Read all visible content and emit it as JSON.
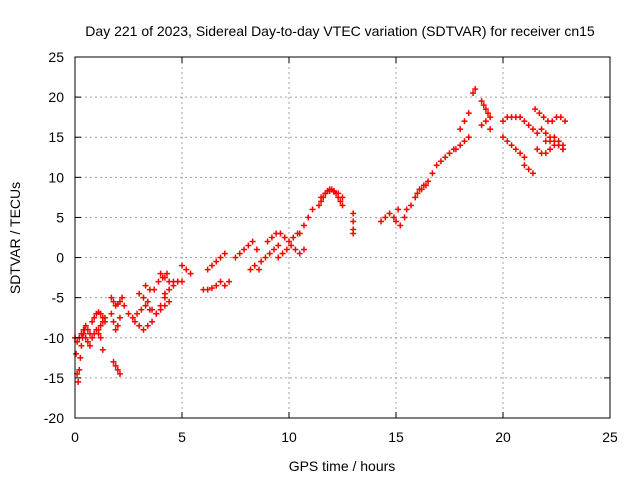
{
  "chart_data": {
    "type": "scatter",
    "title": "Day 221 of 2023, Sidereal Day-to-day VTEC variation (SDTVAR) for receiver cn15",
    "xlabel": "GPS time / hours",
    "ylabel": "SDTVAR / TECUs",
    "xlim": [
      0,
      25
    ],
    "ylim": [
      -20,
      25
    ],
    "x_ticks": [
      0,
      5,
      10,
      15,
      20,
      25
    ],
    "y_ticks": [
      -20,
      -15,
      -10,
      -5,
      0,
      5,
      10,
      15,
      20,
      25
    ],
    "grid": true,
    "marker": "+",
    "color": "#ff0000",
    "series": [
      {
        "name": "cn15",
        "x": [
          0.0,
          0.05,
          0.1,
          0.15,
          0.2,
          0.25,
          0.3,
          0.35,
          0.4,
          0.45,
          0.1,
          0.2,
          0.3,
          0.4,
          0.5,
          0.6,
          0.7,
          0.8,
          0.9,
          1.0,
          1.1,
          1.2,
          1.3,
          1.4,
          0.5,
          0.6,
          0.7,
          0.8,
          0.9,
          1.0,
          1.1,
          1.2,
          1.3,
          1.1,
          1.2,
          1.3,
          1.4,
          1.7,
          1.8,
          1.9,
          2.0,
          2.1,
          2.2,
          1.7,
          1.8,
          1.9,
          2.0,
          2.1,
          1.8,
          1.9,
          2.0,
          2.1,
          2.3,
          2.5,
          2.7,
          2.9,
          3.1,
          3.3,
          3.5,
          2.8,
          3.0,
          3.2,
          3.4,
          3.6,
          3.8,
          4.0,
          4.2,
          3.0,
          3.2,
          3.4,
          3.6,
          3.8,
          4.0,
          4.2,
          4.4,
          3.3,
          3.5,
          3.7,
          3.9,
          4.1,
          4.3,
          4.0,
          4.2,
          4.4,
          4.6,
          4.8,
          4.2,
          4.4,
          4.6,
          4.8,
          5.0,
          5.0,
          5.2,
          5.4,
          6.0,
          6.2,
          6.4,
          6.6,
          6.2,
          6.4,
          6.6,
          6.8,
          7.0,
          6.8,
          7.0,
          7.2,
          7.5,
          7.7,
          7.9,
          8.1,
          8.3,
          8.5,
          8.2,
          8.4,
          8.6,
          8.7,
          8.9,
          9.1,
          9.3,
          9.5,
          9.0,
          9.2,
          9.4,
          9.6,
          9.8,
          10.0,
          10.2,
          10.4,
          9.5,
          9.7,
          9.9,
          10.1,
          10.3,
          10.5,
          10.7,
          10.5,
          10.7,
          10.9,
          11.1,
          11.4,
          11.5,
          11.6,
          11.7,
          11.8,
          11.9,
          12.0,
          12.1,
          12.2,
          12.3,
          12.4,
          12.5,
          11.5,
          11.7,
          11.9,
          12.1,
          12.3,
          12.5,
          13.0,
          13.0,
          13.0,
          13.0,
          14.3,
          14.5,
          14.7,
          14.9,
          15.1,
          15.0,
          15.2,
          15.4,
          15.5,
          15.7,
          15.9,
          16.1,
          16.3,
          16.5,
          16.7,
          16.9,
          17.1,
          17.3,
          17.5,
          17.7,
          16.0,
          16.2,
          16.4,
          17.8,
          18.0,
          18.2,
          18.4,
          18.0,
          18.2,
          18.4,
          18.6,
          18.7,
          19.0,
          19.1,
          19.2,
          19.3,
          19.4,
          19.0,
          19.2,
          19.4,
          20.0,
          20.2,
          20.4,
          20.6,
          20.8,
          21.0,
          21.2,
          21.4,
          21.6,
          20.0,
          20.2,
          20.4,
          20.6,
          20.8,
          21.0,
          21.0,
          21.2,
          21.4,
          21.5,
          21.7,
          21.9,
          22.1,
          22.3,
          22.5,
          22.7,
          22.9,
          21.8,
          22.0,
          22.2,
          22.4,
          22.6,
          22.8,
          21.6,
          21.8,
          22.0,
          22.2,
          22.4,
          22.6,
          22.8,
          22.0,
          22.2,
          22.4,
          22.6,
          22.8
        ],
        "y": [
          -10.0,
          -12.0,
          -14.5,
          -15.5,
          -14.0,
          -12.5,
          -11.0,
          -10.0,
          -9.5,
          -9.0,
          -10.5,
          -10.0,
          -9.5,
          -9.0,
          -8.5,
          -9.0,
          -9.5,
          -8.0,
          -7.5,
          -7.0,
          -6.8,
          -7.0,
          -7.5,
          -8.0,
          -10.0,
          -10.5,
          -11.0,
          -10.0,
          -9.5,
          -9.0,
          -9.5,
          -10.0,
          -11.5,
          -9.0,
          -8.5,
          -8.0,
          -7.5,
          -5.0,
          -5.5,
          -6.0,
          -5.8,
          -5.5,
          -5.0,
          -7.0,
          -8.0,
          -9.0,
          -8.5,
          -7.5,
          -13.0,
          -13.5,
          -14.0,
          -14.5,
          -6.0,
          -7.0,
          -7.5,
          -7.0,
          -6.5,
          -6.0,
          -6.5,
          -8.0,
          -8.5,
          -9.0,
          -8.5,
          -8.0,
          -7.0,
          -6.0,
          -5.0,
          -4.5,
          -5.0,
          -5.5,
          -6.5,
          -7.0,
          -6.5,
          -6.0,
          -5.5,
          -3.5,
          -4.0,
          -4.0,
          -3.0,
          -2.5,
          -2.0,
          -2.0,
          -2.5,
          -3.0,
          -3.0,
          -3.0,
          -4.5,
          -4.0,
          -3.5,
          -3.0,
          -3.0,
          -1.0,
          -1.5,
          -2.0,
          -4.0,
          -4.0,
          -3.8,
          -3.5,
          -1.5,
          -1.0,
          -0.5,
          0.0,
          0.5,
          -3.0,
          -3.5,
          -3.0,
          0.0,
          0.5,
          1.0,
          1.5,
          2.0,
          1.0,
          -1.5,
          -1.0,
          -1.5,
          -0.5,
          0.0,
          0.5,
          1.0,
          1.5,
          2.0,
          2.5,
          3.0,
          3.0,
          2.5,
          2.0,
          2.5,
          3.0,
          0.0,
          0.5,
          1.0,
          1.5,
          1.0,
          0.5,
          1.0,
          3.0,
          4.0,
          5.0,
          6.0,
          6.5,
          7.0,
          7.5,
          8.0,
          8.3,
          8.5,
          8.5,
          8.3,
          8.0,
          7.5,
          7.0,
          6.5,
          7.5,
          8.0,
          8.3,
          8.2,
          8.0,
          7.5,
          5.5,
          4.5,
          3.5,
          3.0,
          4.5,
          5.0,
          5.5,
          5.0,
          6.0,
          4.5,
          4.0,
          5.0,
          6.0,
          6.5,
          7.5,
          8.5,
          9.0,
          9.5,
          10.5,
          11.5,
          12.0,
          12.5,
          13.0,
          13.5,
          8.0,
          8.5,
          9.0,
          13.5,
          14.0,
          14.5,
          15.0,
          16.0,
          17.0,
          18.0,
          20.5,
          21.0,
          19.5,
          19.0,
          18.5,
          18.0,
          17.5,
          16.5,
          17.0,
          16.0,
          17.0,
          17.5,
          17.5,
          17.5,
          17.5,
          17.0,
          16.5,
          16.0,
          15.5,
          15.0,
          14.5,
          14.0,
          13.5,
          13.0,
          12.5,
          11.5,
          11.0,
          10.5,
          18.5,
          18.0,
          17.5,
          17.0,
          17.0,
          17.5,
          17.5,
          17.0,
          16.0,
          15.5,
          15.0,
          14.5,
          14.0,
          13.5,
          13.5,
          13.0,
          13.0,
          13.5,
          14.0,
          14.0,
          13.5,
          14.5,
          14.5,
          15.0,
          14.5,
          14.0
        ]
      }
    ]
  }
}
